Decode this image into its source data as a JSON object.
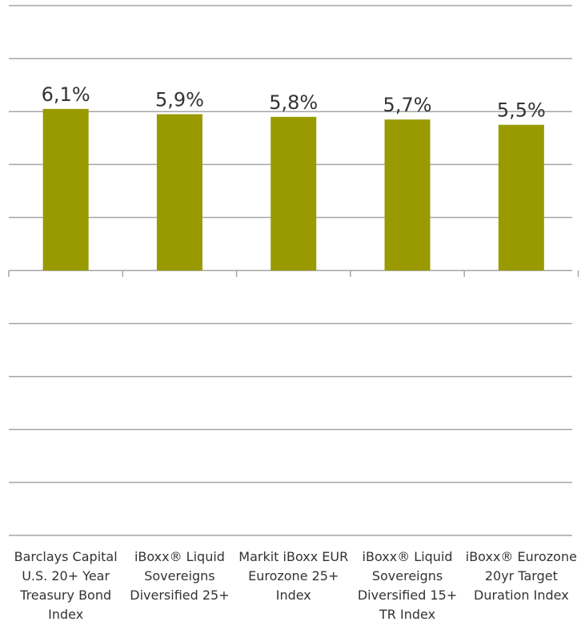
{
  "chart_data": {
    "type": "bar",
    "categories": [
      "Barclays Capital U.S. 20+ Year Treasury Bond Index",
      "iBoxx® Liquid Sovereigns Diversified 25+",
      "Markit iBoxx EUR Eurozone 25+ Index",
      "iBoxx® Liquid Sovereigns Diversified 15+ TR Index",
      "iBoxx® Eurozone 20yr Target Duration Index"
    ],
    "values": [
      6.1,
      5.9,
      5.8,
      5.7,
      5.5
    ],
    "value_labels": [
      "6,1%",
      "5,9%",
      "5,8%",
      "5,7%",
      "5,5%"
    ],
    "color": "#999900",
    "ylim": [
      -10,
      10
    ],
    "yticks": [
      -10,
      -8,
      -6,
      -4,
      -2,
      0,
      2,
      4,
      6,
      8,
      10
    ],
    "grid": true
  }
}
